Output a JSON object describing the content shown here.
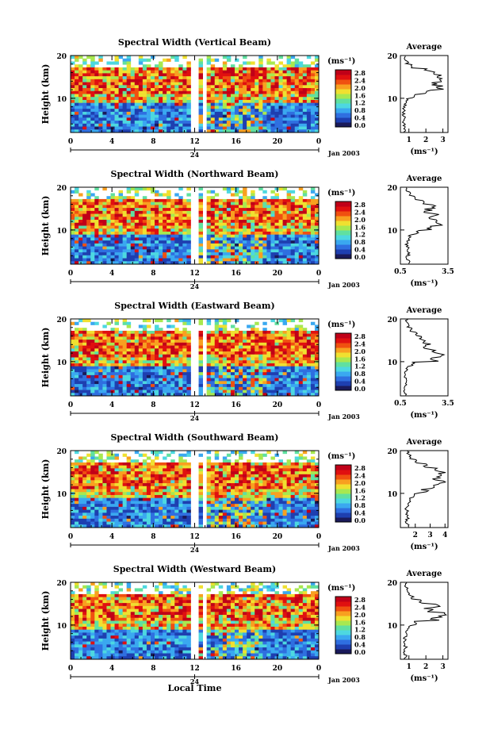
{
  "chart_data": {
    "type": "heatmap",
    "figure": {
      "x_axis_label": "Local Time",
      "date_label": "Jan 2003",
      "day_marker": "24"
    },
    "colorbar": {
      "unit_label": "(ms⁻¹)",
      "ticks": [
        "2.8",
        "2.4",
        "2.0",
        "1.6",
        "1.2",
        "0.8",
        "0.4",
        "0.0"
      ],
      "colors": [
        "#1a1a5a",
        "#1e3fb0",
        "#2f6fe0",
        "#3aa8f0",
        "#4dd8e0",
        "#60e0a0",
        "#a8e850",
        "#f0e030",
        "#f8a020",
        "#f05010",
        "#e01010",
        "#c00018"
      ]
    },
    "panels": [
      {
        "title": "Spectral Width (Vertical Beam)",
        "ylabel": "Height (km)",
        "yticks": [
          "20",
          "10"
        ],
        "xticks": [
          "0",
          "4",
          "8",
          "12",
          "16",
          "20",
          "0"
        ],
        "ylim": [
          2,
          20
        ],
        "xlim": [
          0,
          24
        ],
        "avg_title": "Average",
        "avg_xticks": [
          "1",
          "2",
          "3"
        ],
        "avg_xlim": [
          0.5,
          3.3
        ],
        "avg_unit": "(ms⁻¹)",
        "avg_yticks": [
          "20",
          "10"
        ],
        "average_profile": [
          {
            "h": 2.5,
            "w": 0.75
          },
          {
            "h": 3.5,
            "w": 0.7
          },
          {
            "h": 4.5,
            "w": 0.72
          },
          {
            "h": 5.5,
            "w": 0.7
          },
          {
            "h": 6.5,
            "w": 0.68
          },
          {
            "h": 7.5,
            "w": 0.7
          },
          {
            "h": 8.5,
            "w": 0.75
          },
          {
            "h": 9.5,
            "w": 0.9
          },
          {
            "h": 10.5,
            "w": 1.3
          },
          {
            "h": 11.5,
            "w": 2.2
          },
          {
            "h": 12.5,
            "w": 2.8
          },
          {
            "h": 13.5,
            "w": 2.6
          },
          {
            "h": 14.5,
            "w": 2.9
          },
          {
            "h": 15.5,
            "w": 2.7
          },
          {
            "h": 16.5,
            "w": 2.2
          },
          {
            "h": 17.5,
            "w": 1.2
          },
          {
            "h": 18.5,
            "w": 0.9
          },
          {
            "h": 19.5,
            "w": 0.8
          }
        ]
      },
      {
        "title": "Spectral Width (Northward Beam)",
        "ylabel": "Height (km)",
        "yticks": [
          "20",
          "10"
        ],
        "xticks": [
          "0",
          "4",
          "8",
          "12",
          "16",
          "20",
          "0"
        ],
        "ylim": [
          2,
          20
        ],
        "xlim": [
          0,
          24
        ],
        "avg_title": "Average",
        "avg_xticks": [
          "0.5",
          "3.5"
        ],
        "avg_xlim": [
          0.5,
          3.5
        ],
        "avg_unit": "(ms⁻¹)",
        "avg_yticks": [
          "20",
          "10"
        ],
        "average_profile": [
          {
            "h": 2.5,
            "w": 1.0
          },
          {
            "h": 3.5,
            "w": 0.9
          },
          {
            "h": 4.5,
            "w": 1.0
          },
          {
            "h": 5.5,
            "w": 0.95
          },
          {
            "h": 6.5,
            "w": 0.9
          },
          {
            "h": 7.5,
            "w": 1.0
          },
          {
            "h": 8.5,
            "w": 1.1
          },
          {
            "h": 9.5,
            "w": 1.6
          },
          {
            "h": 10.5,
            "w": 2.3
          },
          {
            "h": 11.5,
            "w": 2.9
          },
          {
            "h": 12.5,
            "w": 2.5
          },
          {
            "h": 13.5,
            "w": 2.7
          },
          {
            "h": 14.5,
            "w": 2.3
          },
          {
            "h": 15.5,
            "w": 2.4
          },
          {
            "h": 16.5,
            "w": 1.9
          },
          {
            "h": 17.5,
            "w": 1.4
          },
          {
            "h": 18.5,
            "w": 1.1
          },
          {
            "h": 19.5,
            "w": 0.9
          }
        ]
      },
      {
        "title": "Spectral Width (Eastward Beam)",
        "ylabel": "Height (km)",
        "yticks": [
          "20",
          "10"
        ],
        "xticks": [
          "0",
          "4",
          "8",
          "12",
          "16",
          "20",
          "0"
        ],
        "ylim": [
          2,
          20
        ],
        "xlim": [
          0,
          24
        ],
        "avg_title": "Average",
        "avg_xticks": [
          "0.5",
          "3.5"
        ],
        "avg_xlim": [
          0.5,
          3.5
        ],
        "avg_unit": "(ms⁻¹)",
        "avg_yticks": [
          "20",
          "10"
        ],
        "average_profile": [
          {
            "h": 2.5,
            "w": 0.8
          },
          {
            "h": 3.5,
            "w": 0.75
          },
          {
            "h": 4.5,
            "w": 0.8
          },
          {
            "h": 5.5,
            "w": 0.8
          },
          {
            "h": 6.5,
            "w": 0.8
          },
          {
            "h": 7.5,
            "w": 0.85
          },
          {
            "h": 8.5,
            "w": 0.9
          },
          {
            "h": 9.5,
            "w": 1.3
          },
          {
            "h": 10.5,
            "w": 2.6
          },
          {
            "h": 11.5,
            "w": 3.1
          },
          {
            "h": 12.5,
            "w": 2.4
          },
          {
            "h": 13.5,
            "w": 2.0
          },
          {
            "h": 14.5,
            "w": 2.2
          },
          {
            "h": 15.5,
            "w": 1.8
          },
          {
            "h": 16.5,
            "w": 1.5
          },
          {
            "h": 17.5,
            "w": 1.2
          },
          {
            "h": 18.5,
            "w": 1.0
          },
          {
            "h": 19.5,
            "w": 0.9
          }
        ]
      },
      {
        "title": "Spectral Width (Southward Beam)",
        "ylabel": "Height (km)",
        "yticks": [
          "20",
          "10"
        ],
        "xticks": [
          "0",
          "4",
          "8",
          "12",
          "16",
          "20",
          "0"
        ],
        "ylim": [
          2,
          20
        ],
        "xlim": [
          0,
          24
        ],
        "avg_title": "Average",
        "avg_xticks": [
          "2",
          "3",
          "4"
        ],
        "avg_xlim": [
          1.0,
          4.2
        ],
        "avg_unit": "(ms⁻¹)",
        "avg_yticks": [
          "20",
          "10"
        ],
        "average_profile": [
          {
            "h": 2.5,
            "w": 1.5
          },
          {
            "h": 3.5,
            "w": 1.4
          },
          {
            "h": 4.5,
            "w": 1.5
          },
          {
            "h": 5.5,
            "w": 1.45
          },
          {
            "h": 6.5,
            "w": 1.4
          },
          {
            "h": 7.5,
            "w": 1.5
          },
          {
            "h": 8.5,
            "w": 1.6
          },
          {
            "h": 9.5,
            "w": 1.9
          },
          {
            "h": 10.5,
            "w": 2.6
          },
          {
            "h": 11.5,
            "w": 3.3
          },
          {
            "h": 12.5,
            "w": 3.7
          },
          {
            "h": 13.5,
            "w": 3.4
          },
          {
            "h": 14.5,
            "w": 3.8
          },
          {
            "h": 15.5,
            "w": 3.5
          },
          {
            "h": 16.5,
            "w": 2.6
          },
          {
            "h": 17.5,
            "w": 2.0
          },
          {
            "h": 18.5,
            "w": 1.7
          },
          {
            "h": 19.5,
            "w": 1.5
          }
        ]
      },
      {
        "title": "Spectral Width (Westward Beam)",
        "ylabel": "Height (km)",
        "yticks": [
          "20",
          "10"
        ],
        "xticks": [
          "0",
          "4",
          "8",
          "12",
          "16",
          "20",
          "0"
        ],
        "ylim": [
          2,
          20
        ],
        "xlim": [
          0,
          24
        ],
        "avg_title": "Average",
        "avg_xticks": [
          "1",
          "2",
          "3"
        ],
        "avg_xlim": [
          0.5,
          3.3
        ],
        "avg_unit": "(ms⁻¹)",
        "avg_yticks": [
          "20",
          "10"
        ],
        "average_profile": [
          {
            "h": 2.5,
            "w": 0.8
          },
          {
            "h": 3.5,
            "w": 0.75
          },
          {
            "h": 4.5,
            "w": 0.8
          },
          {
            "h": 5.5,
            "w": 0.78
          },
          {
            "h": 6.5,
            "w": 0.75
          },
          {
            "h": 7.5,
            "w": 0.8
          },
          {
            "h": 8.5,
            "w": 0.85
          },
          {
            "h": 9.5,
            "w": 1.0
          },
          {
            "h": 10.5,
            "w": 1.4
          },
          {
            "h": 11.5,
            "w": 2.6
          },
          {
            "h": 12.5,
            "w": 3.0
          },
          {
            "h": 13.5,
            "w": 2.2
          },
          {
            "h": 14.5,
            "w": 2.5
          },
          {
            "h": 15.5,
            "w": 1.7
          },
          {
            "h": 16.5,
            "w": 1.2
          },
          {
            "h": 17.5,
            "w": 1.0
          },
          {
            "h": 18.5,
            "w": 0.9
          },
          {
            "h": 19.5,
            "w": 0.8
          }
        ]
      }
    ]
  }
}
